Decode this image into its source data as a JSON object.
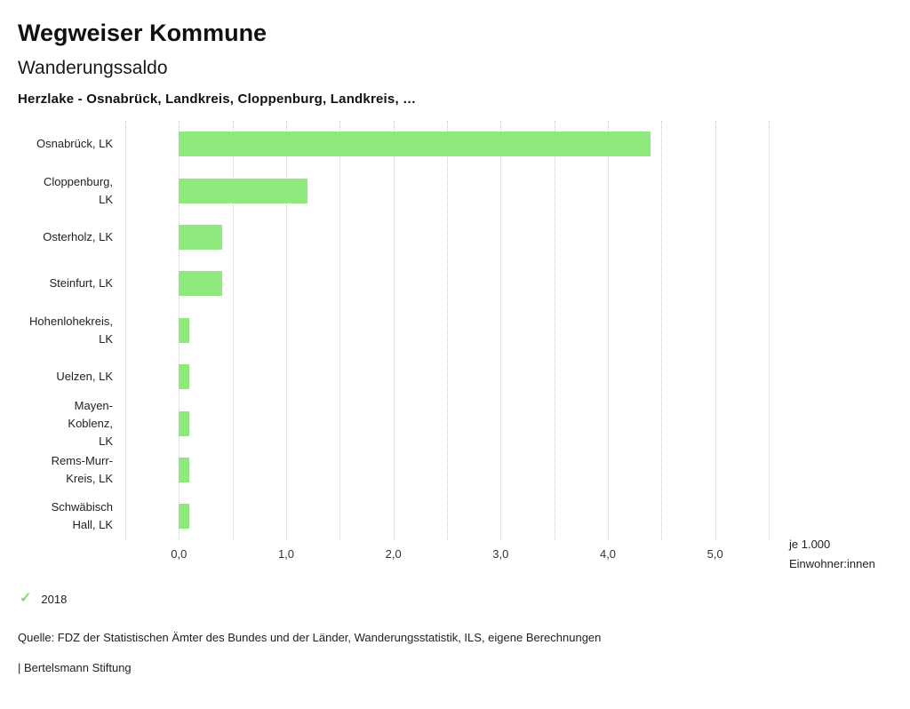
{
  "header": {
    "title": "Wegweiser Kommune",
    "subtitle": "Wanderungssaldo",
    "filter_line": "Herzlake - Osnabrück, Landkreis, Cloppenburg, Landkreis, …"
  },
  "colors": {
    "bar": "#8fe97d",
    "check": "#84d96e",
    "grid": "#c8c8c8"
  },
  "chart_data": {
    "type": "bar",
    "orientation": "horizontal",
    "categories": [
      "Osnabrück, LK",
      "Cloppenburg,\nLK",
      "Osterholz, LK",
      "Steinfurt, LK",
      "Hohenlohekreis,\nLK",
      "Uelzen, LK",
      "Mayen-Koblenz,\nLK",
      "Rems-Murr-\nKreis, LK",
      "Schwäbisch\nHall, LK"
    ],
    "series": [
      {
        "name": "2018",
        "values": [
          4.4,
          1.2,
          0.4,
          0.4,
          0.1,
          0.1,
          0.1,
          0.1,
          0.1
        ]
      }
    ],
    "xlim": [
      -0.5,
      5.5
    ],
    "grid_step": 0.5,
    "grid": true,
    "xticks": [
      {
        "value": 0,
        "label": "0,0"
      },
      {
        "value": 1,
        "label": "1,0"
      },
      {
        "value": 2,
        "label": "2,0"
      },
      {
        "value": 3,
        "label": "3,0"
      },
      {
        "value": 4,
        "label": "4,0"
      },
      {
        "value": 5,
        "label": "5,0"
      }
    ],
    "x_unit_label": [
      "je 1.000",
      "Einwohner:innen"
    ],
    "legend_position": "bottom-left"
  },
  "footer": {
    "source": "Quelle: FDZ der Statistischen Ämter des Bundes und der Länder, Wanderungsstatistik, ILS, eigene Berechnungen",
    "attribution": "| Bertelsmann Stiftung"
  }
}
